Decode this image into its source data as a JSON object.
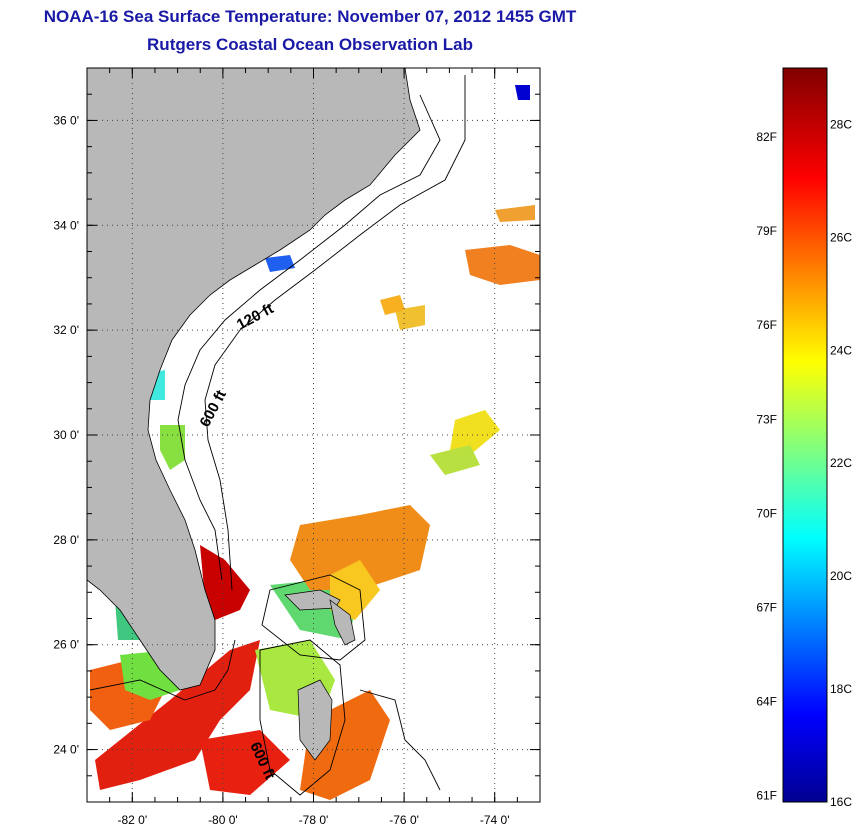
{
  "header": {
    "title": "NOAA-16 Sea Surface Temperature:  November 07, 2012 1455 GMT",
    "subtitle": "Rutgers Coastal Ocean Observation Lab"
  },
  "map": {
    "lat_range": [
      23,
      37
    ],
    "lon_range": [
      -83,
      -73
    ],
    "lat_ticks": [
      {
        "value": 24,
        "label": "24 0'"
      },
      {
        "value": 26,
        "label": "26 0'"
      },
      {
        "value": 28,
        "label": "28 0'"
      },
      {
        "value": 30,
        "label": "30 0'"
      },
      {
        "value": 32,
        "label": "32 0'"
      },
      {
        "value": 34,
        "label": "34 0'"
      },
      {
        "value": 36,
        "label": "36 0'"
      }
    ],
    "lon_ticks": [
      {
        "value": -82,
        "label": "-82 0'"
      },
      {
        "value": -80,
        "label": "-80 0'"
      },
      {
        "value": -78,
        "label": "-78 0'"
      },
      {
        "value": -76,
        "label": "-76 0'"
      },
      {
        "value": -74,
        "label": "-74 0'"
      }
    ],
    "contour_labels": [
      "120 ft",
      "600 ft",
      "600 ft"
    ],
    "land_color": "#b8b8b8",
    "grid": true
  },
  "colorbar": {
    "range_c": [
      16,
      29
    ],
    "celsius_labels": [
      "16C",
      "18C",
      "20C",
      "22C",
      "24C",
      "26C",
      "28C"
    ],
    "fahrenheit_labels": [
      "61F",
      "64F",
      "67F",
      "70F",
      "73F",
      "76F",
      "79F",
      "82F"
    ],
    "colormap": "jet"
  }
}
